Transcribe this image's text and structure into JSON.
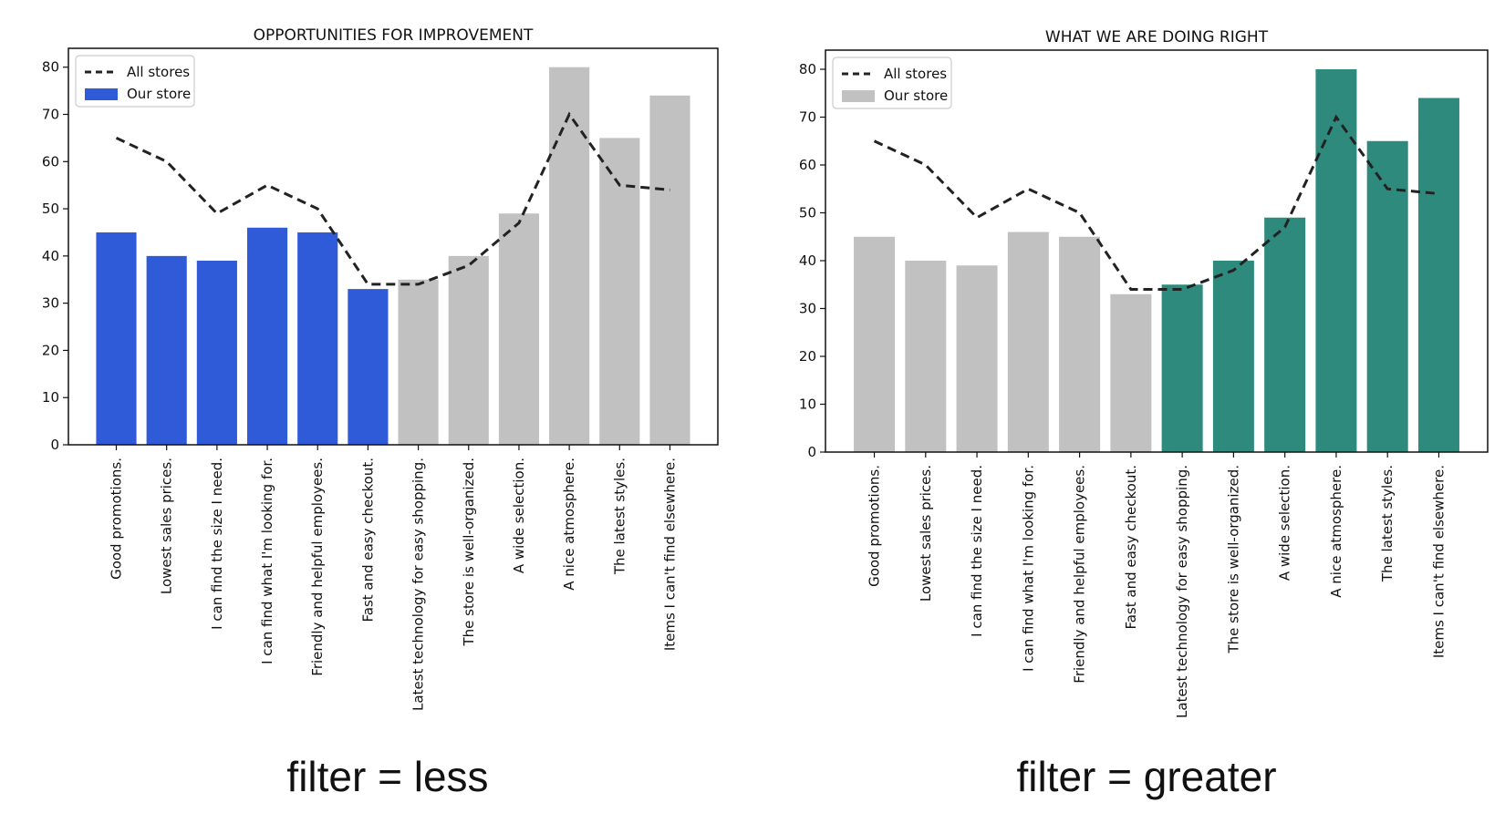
{
  "captions": [
    "filter = less",
    "filter = greater"
  ],
  "chart_data": [
    {
      "type": "bar",
      "title": "OPPORTUNITIES FOR IMPROVEMENT",
      "xlabel": "",
      "ylabel": "",
      "ylim": [
        0,
        84
      ],
      "yticks": [
        0,
        10,
        20,
        30,
        40,
        50,
        60,
        70,
        80
      ],
      "grid": false,
      "legend_position": "top-left",
      "categories": [
        "Good promotions.",
        "Lowest sales prices.",
        "I can find the size I need.",
        "I can find what I'm looking for.",
        "Friendly and helpful employees.",
        "Fast and easy checkout.",
        "Latest technology for easy shopping.",
        "The store is well-organized.",
        "A wide selection.",
        "A nice atmosphere.",
        "The latest styles.",
        "Items I can't find elsewhere."
      ],
      "series": [
        {
          "name": "Our store",
          "kind": "bar",
          "values": [
            45,
            40,
            39,
            46,
            45,
            33,
            35,
            40,
            49,
            80,
            65,
            74
          ]
        },
        {
          "name": "All stores",
          "kind": "line",
          "style": "dashed",
          "values": [
            65,
            60,
            49,
            55,
            50,
            34,
            34,
            38,
            47,
            70,
            55,
            54
          ]
        }
      ],
      "colors": {
        "highlight": "#2f5bd9",
        "muted": "#c0c1c0",
        "line": "#222222"
      },
      "highlight_rule": "less",
      "legend": [
        {
          "label": "All stores",
          "kind": "line"
        },
        {
          "label": "Our store",
          "kind": "highlight"
        }
      ]
    },
    {
      "type": "bar",
      "title": "WHAT WE ARE DOING RIGHT",
      "xlabel": "",
      "ylabel": "",
      "ylim": [
        0,
        84
      ],
      "yticks": [
        0,
        10,
        20,
        30,
        40,
        50,
        60,
        70,
        80
      ],
      "grid": false,
      "legend_position": "top-left",
      "categories": [
        "Good promotions.",
        "Lowest sales prices.",
        "I can find the size I need.",
        "I can find what I'm looking for.",
        "Friendly and helpful employees.",
        "Fast and easy checkout.",
        "Latest technology for easy shopping.",
        "The store is well-organized.",
        "A wide selection.",
        "A nice atmosphere.",
        "The latest styles.",
        "Items I can't find elsewhere."
      ],
      "series": [
        {
          "name": "Our store",
          "kind": "bar",
          "values": [
            45,
            40,
            39,
            46,
            45,
            33,
            35,
            40,
            49,
            80,
            65,
            74
          ]
        },
        {
          "name": "All stores",
          "kind": "line",
          "style": "dashed",
          "values": [
            65,
            60,
            49,
            55,
            50,
            34,
            34,
            38,
            47,
            70,
            55,
            54
          ]
        }
      ],
      "colors": {
        "highlight": "#2e8a7d",
        "muted": "#c0c1c0",
        "line": "#222222"
      },
      "highlight_rule": "greater",
      "legend": [
        {
          "label": "All stores",
          "kind": "line"
        },
        {
          "label": "Our store",
          "kind": "muted"
        }
      ]
    }
  ]
}
